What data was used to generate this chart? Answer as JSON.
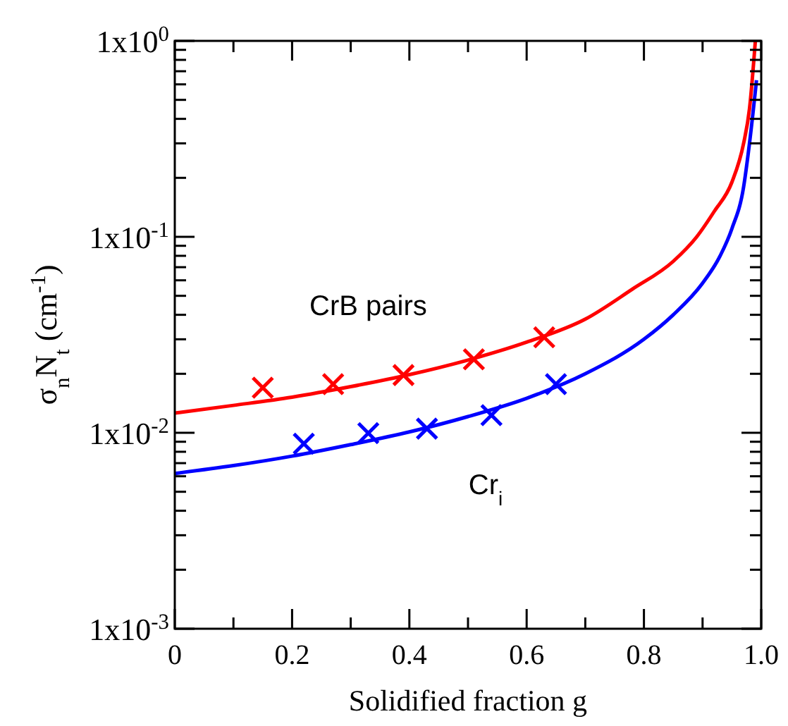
{
  "chart_data": {
    "type": "line",
    "xlabel": "Solidified fraction g",
    "ylabel": "σ$_{n}$N$_{t}$ (cm$^{-1}$)",
    "log": "y",
    "grid": false,
    "xlim": [
      0,
      1
    ],
    "ylim": [
      0.001,
      1
    ],
    "xticks": [
      0,
      {
        "value": 0.1,
        "label": null
      },
      0.2,
      {
        "value": 0.3,
        "label": null
      },
      0.4,
      {
        "value": 0.5,
        "label": null
      },
      0.6,
      {
        "value": 0.7,
        "label": null
      },
      0.8,
      {
        "value": 0.9,
        "label": null
      },
      {
        "value": 1,
        "label": "1.0"
      }
    ],
    "yticks": [
      {
        "value": 0.001,
        "label": "1x10$^{-3}$"
      },
      {
        "value": 0.002,
        "label": null
      },
      {
        "value": 0.003,
        "label": null
      },
      {
        "value": 0.004,
        "label": null
      },
      {
        "value": 0.005,
        "label": null
      },
      {
        "value": 0.006,
        "label": null
      },
      {
        "value": 0.007,
        "label": null
      },
      {
        "value": 0.008,
        "label": null
      },
      {
        "value": 0.009,
        "label": null
      },
      {
        "value": 0.01,
        "label": "1x10$^{-2}$"
      },
      {
        "value": 0.02,
        "label": null
      },
      {
        "value": 0.03,
        "label": null
      },
      {
        "value": 0.04,
        "label": null
      },
      {
        "value": 0.05,
        "label": null
      },
      {
        "value": 0.06,
        "label": null
      },
      {
        "value": 0.07,
        "label": null
      },
      {
        "value": 0.08,
        "label": null
      },
      {
        "value": 0.09,
        "label": null
      },
      {
        "value": 0.1,
        "label": "1x10$^{-1}$"
      },
      {
        "value": 0.2,
        "label": null
      },
      {
        "value": 0.3,
        "label": null
      },
      {
        "value": 0.4,
        "label": null
      },
      {
        "value": 0.5,
        "label": null
      },
      {
        "value": 0.6,
        "label": null
      },
      {
        "value": 0.7,
        "label": null
      },
      {
        "value": 0.8,
        "label": null
      },
      {
        "value": 0.9,
        "label": null
      },
      {
        "value": 1,
        "label": "1x10$^{0}$"
      }
    ],
    "series": [
      {
        "color": "#ff0000",
        "x": [
          0,
          0.1,
          0.2,
          0.3,
          0.4,
          0.5,
          0.6,
          0.7,
          0.78,
          0.85,
          0.89,
          0.92,
          0.95,
          0.97,
          0.98,
          0.99
        ],
        "values": [
          0.0126,
          0.0138,
          0.0152,
          0.0172,
          0.0198,
          0.0235,
          0.029,
          0.038,
          0.054,
          0.075,
          0.1,
          0.135,
          0.19,
          0.3,
          0.45,
          1.0
        ]
      },
      {
        "color": "#0000ff",
        "x": [
          0,
          0.1,
          0.2,
          0.3,
          0.4,
          0.5,
          0.6,
          0.7,
          0.8,
          0.85,
          0.9,
          0.93,
          0.95,
          0.97,
          0.98,
          0.992
        ],
        "values": [
          0.0062,
          0.0068,
          0.0076,
          0.0087,
          0.0101,
          0.0121,
          0.015,
          0.02,
          0.03,
          0.04,
          0.058,
          0.08,
          0.11,
          0.18,
          0.3,
          0.63
        ]
      },
      {
        "type": "scatter",
        "name": "CrB pairs",
        "marker": "cross",
        "color": "#ff0000",
        "x": [
          0.15,
          0.27,
          0.39,
          0.51,
          0.63
        ],
        "values": [
          0.017,
          0.0177,
          0.0197,
          0.0237,
          0.0307
        ]
      },
      {
        "type": "scatter",
        "name": "Cr$_{i}$",
        "marker": "cross",
        "color": "#0000ff",
        "x": [
          0.22,
          0.33,
          0.43,
          0.54,
          0.65
        ],
        "values": [
          0.0088,
          0.00995,
          0.0105,
          0.0123,
          0.0177
        ]
      }
    ]
  }
}
